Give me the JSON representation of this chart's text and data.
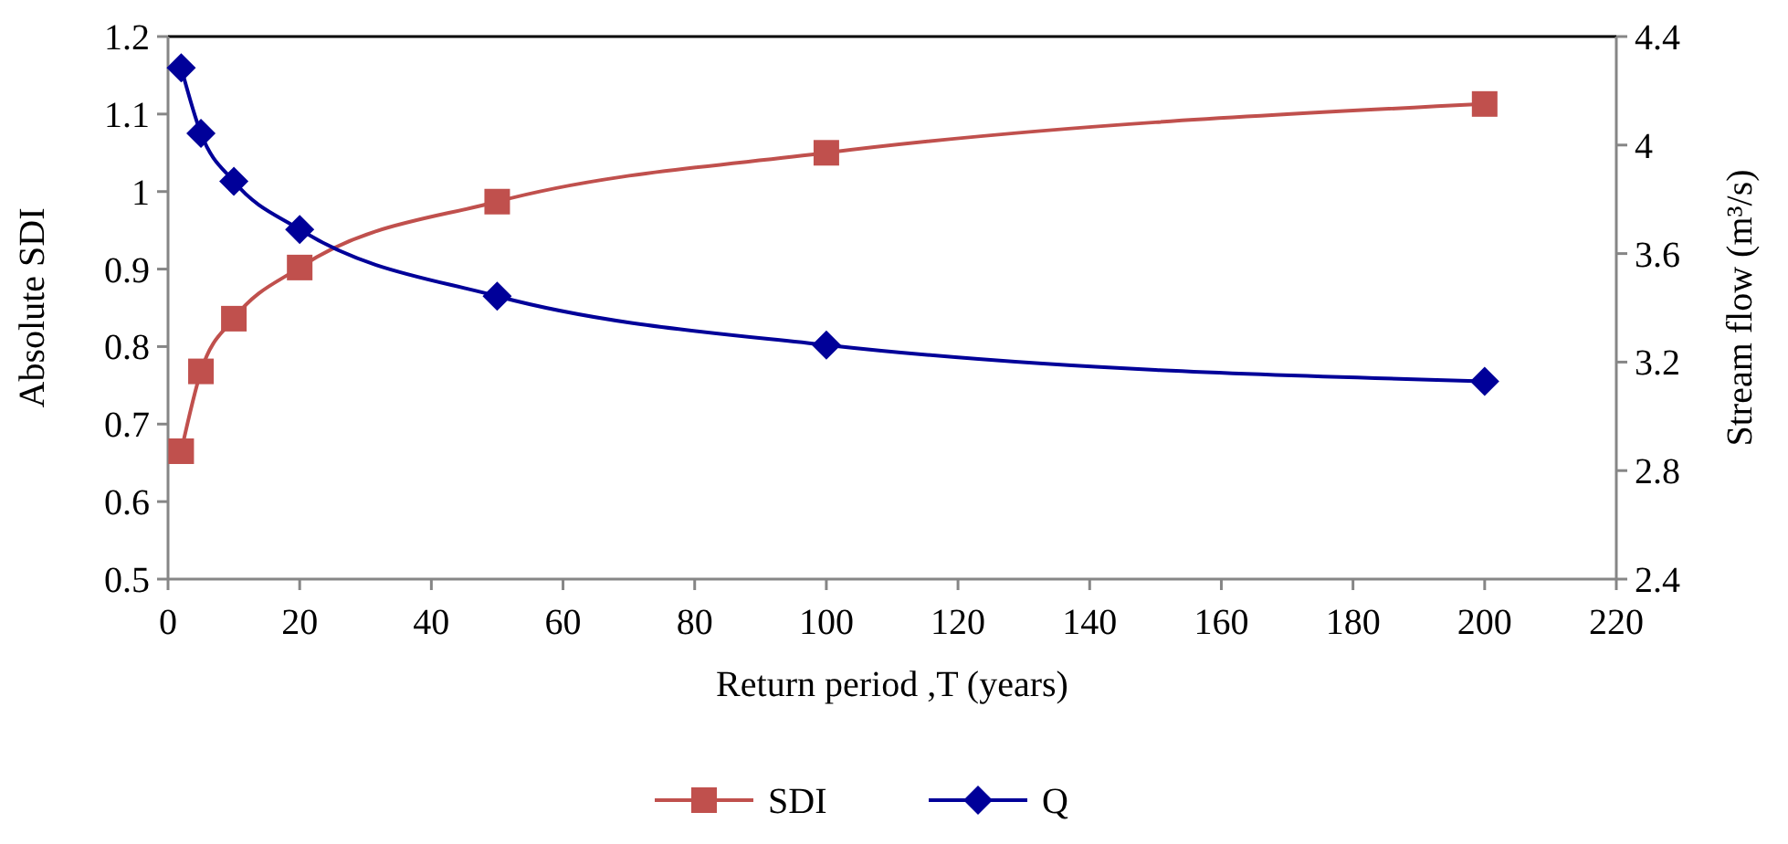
{
  "chart_data": {
    "type": "line",
    "xlabel": "Return period ,T (years)",
    "ylabel": "Absolute SDI",
    "y2label": "Stream flow (m³/s)",
    "x": [
      2,
      5,
      10,
      20,
      50,
      100,
      200
    ],
    "series": [
      {
        "name": "SDI",
        "color": "#c0504d",
        "marker": "square",
        "values": [
          0.665,
          0.768,
          0.836,
          0.902,
          0.987,
          1.05,
          1.113
        ]
      },
      {
        "name": "Q",
        "color": "#000099",
        "marker": "diamond",
        "axis": "y2",
        "values": [
          4.285,
          4.043,
          3.866,
          3.689,
          3.443,
          3.263,
          3.129
        ]
      }
    ],
    "xlim": [
      0,
      220
    ],
    "xticks": [
      0,
      20,
      40,
      60,
      80,
      100,
      120,
      140,
      160,
      180,
      200,
      220
    ],
    "ylim": [
      0.5,
      1.2
    ],
    "yticks": [
      {
        "value": 0.5,
        "label": "0.5"
      },
      {
        "value": 0.6,
        "label": "0.6"
      },
      {
        "value": 0.7,
        "label": "0.7"
      },
      {
        "value": 0.8,
        "label": "0.8"
      },
      {
        "value": 0.9,
        "label": "0.9"
      },
      {
        "value": 1,
        "label": "1"
      },
      {
        "value": 1.1,
        "label": "1.1"
      },
      {
        "value": 1.2,
        "label": "1.2"
      }
    ],
    "y2lim": [
      2.4,
      4.4
    ],
    "y2ticks": [
      {
        "value": 2.4,
        "label": "2.4"
      },
      {
        "value": 2.8,
        "label": "2.8"
      },
      {
        "value": 3.2,
        "label": "3.2"
      },
      {
        "value": 3.6,
        "label": "3.6"
      },
      {
        "value": 4,
        "label": "4"
      },
      {
        "value": 4.4,
        "label": "4.4"
      }
    ],
    "grid": false,
    "legend": "bottom"
  }
}
